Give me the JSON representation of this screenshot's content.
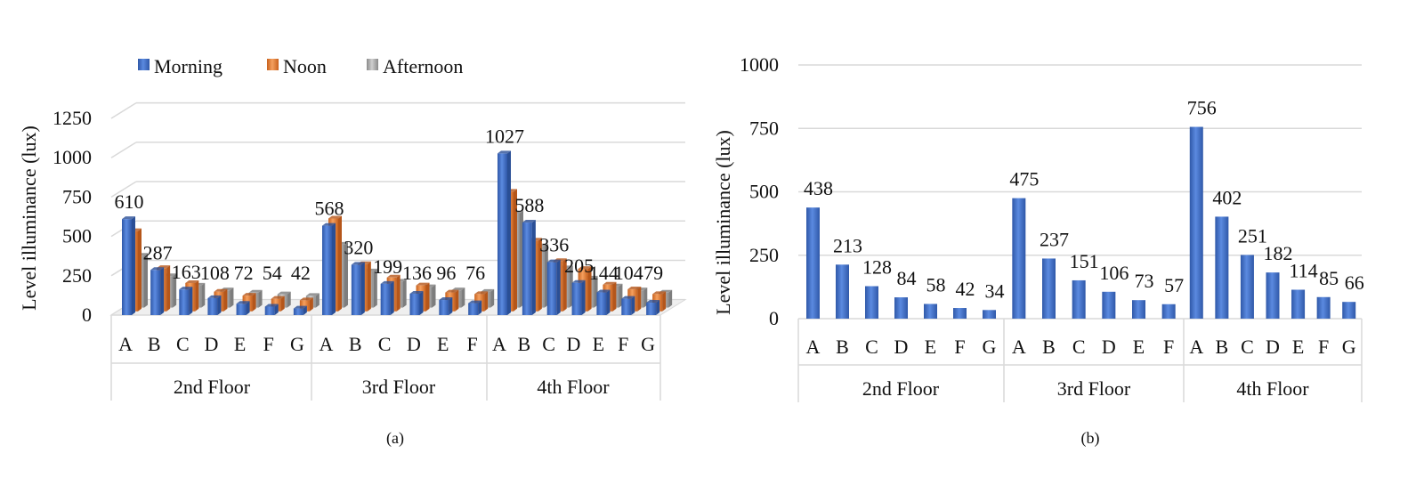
{
  "legend": [
    {
      "label": "Morning",
      "color": "#4472C4"
    },
    {
      "label": "Noon",
      "color": "#ED7D31"
    },
    {
      "label": "Afternoon",
      "color": "#A5A5A5"
    }
  ],
  "panel_labels": [
    "(a)",
    "(b)"
  ],
  "chart_data": [
    {
      "type": "bar",
      "title": "",
      "xlabel": "",
      "ylabel": "Level illuminance (lux)",
      "ylim": [
        0,
        1250
      ],
      "yticks": [
        0,
        250,
        500,
        750,
        1000,
        1250
      ],
      "grid": true,
      "legend_position": "top-left",
      "groups": [
        {
          "name": "2nd Floor",
          "categories": [
            "A",
            "B",
            "C",
            "D",
            "E",
            "F",
            "G"
          ]
        },
        {
          "name": "3rd Floor",
          "categories": [
            "A",
            "B",
            "C",
            "D",
            "E",
            "F"
          ]
        },
        {
          "name": "4th Floor",
          "categories": [
            "A",
            "B",
            "C",
            "D",
            "E",
            "F",
            "G"
          ]
        }
      ],
      "series": [
        {
          "name": "Morning",
          "color": "#4472C4",
          "values": [
            [
              610,
              287,
              163,
              108,
              72,
              54,
              42
            ],
            [
              568,
              320,
              199,
              136,
              96,
              76
            ],
            [
              1027,
              588,
              336,
              205,
              144,
              104,
              79
            ]
          ]
        },
        {
          "name": "Noon",
          "color": "#ED7D31",
          "values": [
            [
              510,
              275,
              180,
              125,
              100,
              80,
              70
            ],
            [
              590,
              300,
              215,
              165,
              120,
              110
            ],
            [
              760,
              450,
              320,
              270,
              170,
              140,
              110
            ]
          ]
        },
        {
          "name": "Afternoon",
          "color": "#A5A5A5",
          "values": [
            [
              330,
              200,
              140,
              110,
              95,
              85,
              75
            ],
            [
              400,
              230,
              165,
              130,
              110,
              100
            ],
            [
              600,
              390,
              250,
              185,
              135,
              110,
              95
            ]
          ]
        }
      ],
      "data_labels": [
        [
          "610",
          "287",
          "163",
          "108",
          "72",
          "54",
          "42"
        ],
        [
          "568",
          "320",
          "199",
          "136",
          "96",
          "76"
        ],
        [
          "1027",
          "588",
          "336",
          "205",
          "144",
          "104",
          "79"
        ]
      ]
    },
    {
      "type": "bar",
      "title": "",
      "xlabel": "",
      "ylabel": "Level illuminance (lux)",
      "ylim": [
        0,
        1000
      ],
      "yticks": [
        0,
        250,
        500,
        750,
        1000
      ],
      "grid": true,
      "groups": [
        {
          "name": "2nd Floor",
          "categories": [
            "A",
            "B",
            "C",
            "D",
            "E",
            "F",
            "G"
          ]
        },
        {
          "name": "3rd Floor",
          "categories": [
            "A",
            "B",
            "C",
            "D",
            "E",
            "F"
          ]
        },
        {
          "name": "4th Floor",
          "categories": [
            "A",
            "B",
            "C",
            "D",
            "E",
            "F",
            "G"
          ]
        }
      ],
      "series": [
        {
          "name": "",
          "color": "#4472C4",
          "values": [
            [
              438,
              213,
              128,
              84,
              58,
              42,
              34
            ],
            [
              475,
              237,
              151,
              106,
              73,
              57
            ],
            [
              756,
              402,
              251,
              182,
              114,
              85,
              66
            ]
          ]
        }
      ],
      "data_labels": [
        [
          "438",
          "213",
          "128",
          "84",
          "58",
          "42",
          "34"
        ],
        [
          "475",
          "237",
          "151",
          "106",
          "73",
          "57"
        ],
        [
          "756",
          "402",
          "251",
          "182",
          "114",
          "85",
          "66"
        ]
      ]
    }
  ]
}
